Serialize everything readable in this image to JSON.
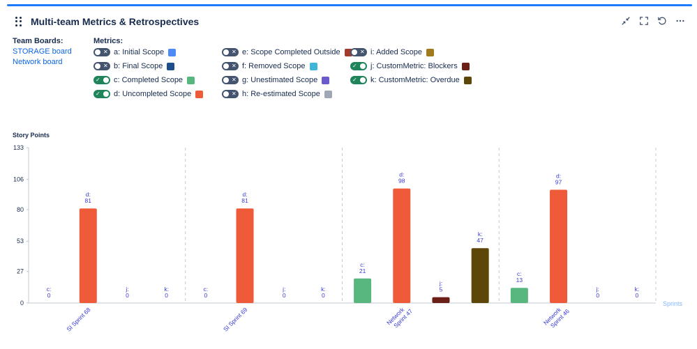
{
  "title": "Multi-team Metrics & Retrospectives",
  "icons": {
    "drag": "drag-handle-icon",
    "minimize": "minimize-icon",
    "fullscreen": "fullscreen-icon",
    "refresh": "refresh-icon",
    "more": "more-options-icon"
  },
  "team_boards": {
    "label": "Team Boards:",
    "boards": [
      "STORAGE board",
      "Network board"
    ]
  },
  "metrics": {
    "label": "Metrics:",
    "items": [
      {
        "label": "a: Initial Scope",
        "on": false,
        "color": "#4c8bf5"
      },
      {
        "label": "b: Final Scope",
        "on": false,
        "color": "#1f4e8c"
      },
      {
        "label": "c: Completed Scope",
        "on": true,
        "color": "#57b77e"
      },
      {
        "label": "d: Uncompleted Scope",
        "on": true,
        "color": "#ef5a39"
      },
      {
        "label": "e: Scope Completed Outside",
        "on": false,
        "color": "#a13b2e"
      },
      {
        "label": "f: Removed Scope",
        "on": false,
        "color": "#3fb6d8"
      },
      {
        "label": "g: Unestimated Scope",
        "on": false,
        "color": "#6a5acd"
      },
      {
        "label": "h: Re-estimated Scope",
        "on": false,
        "color": "#a0a7b4"
      },
      {
        "label": "i: Added Scope",
        "on": false,
        "color": "#a07a1c"
      },
      {
        "label": "j: CustomMetric: Blockers",
        "on": true,
        "color": "#6b1f16"
      },
      {
        "label": "k: CustomMetric: Overdue",
        "on": true,
        "color": "#5c4708"
      }
    ]
  },
  "chart_data": {
    "type": "bar",
    "ylabel": "Story Points",
    "xlabel": "Sprints",
    "ylim": [
      0,
      133
    ],
    "yticks": [
      0,
      27,
      53,
      80,
      106,
      133
    ],
    "categories": [
      "SI Sprint 68",
      "SI Sprint 69",
      "Network Sprint 47",
      "Network Sprint 46"
    ],
    "series": [
      {
        "name": "c",
        "color": "#57b77e",
        "values": [
          0,
          0,
          21,
          13
        ]
      },
      {
        "name": "d",
        "color": "#ef5a39",
        "values": [
          81,
          81,
          98,
          97
        ]
      },
      {
        "name": "j",
        "color": "#6b1f16",
        "values": [
          0,
          0,
          5,
          0
        ]
      },
      {
        "name": "k",
        "color": "#5c4708",
        "values": [
          0,
          0,
          47,
          0
        ]
      }
    ],
    "grid": "vertical-dashed-between-groups",
    "legend": "none"
  }
}
